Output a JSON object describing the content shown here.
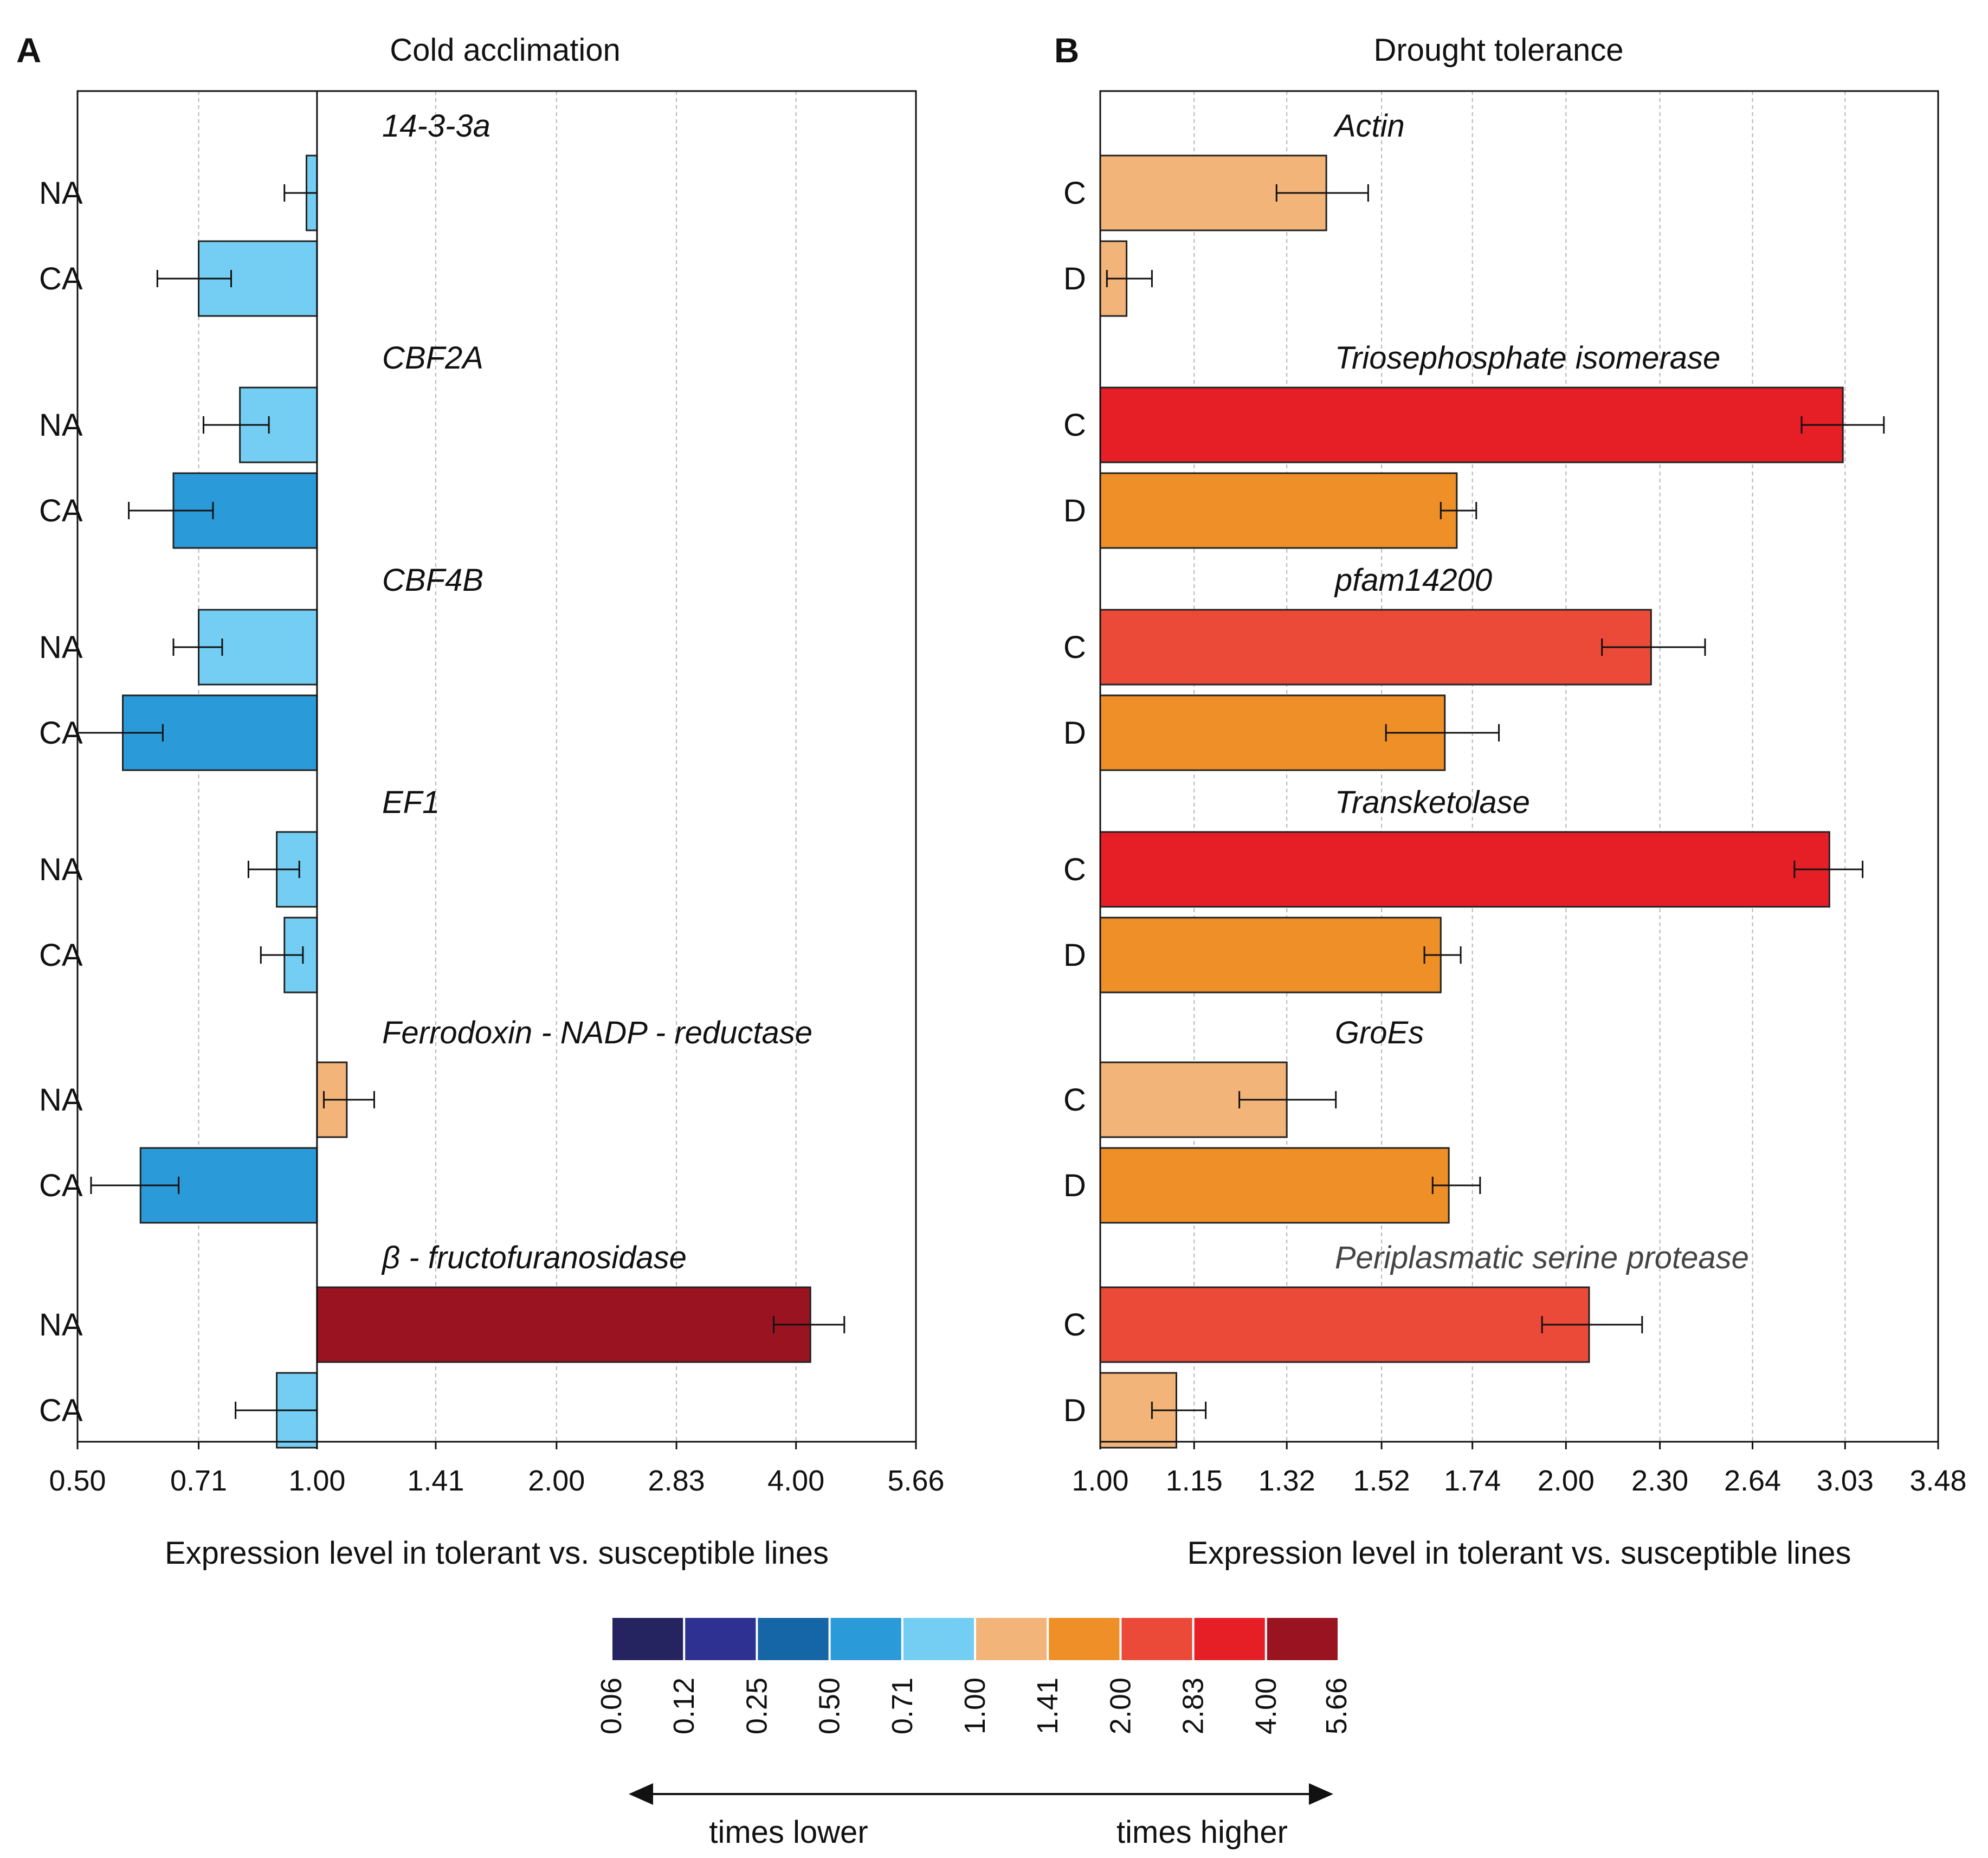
{
  "chart_data": [
    {
      "panel_label": "A",
      "type": "bar",
      "orientation": "horizontal",
      "title": "Cold acclimation",
      "xlabel": "Expression level in tolerant vs. susceptible lines",
      "xscale": "log2",
      "baseline": 1.0,
      "xlim": [
        0.5,
        5.66
      ],
      "xticks": [
        "0.50",
        "0.71",
        "1.00",
        "1.41",
        "2.00",
        "2.83",
        "4.00",
        "5.66"
      ],
      "xtick_values": [
        0.5,
        0.71,
        1.0,
        1.41,
        2.0,
        2.83,
        4.0,
        5.66
      ],
      "groups": [
        {
          "gene": "14-3-3a",
          "bars": [
            {
              "category": "NA",
              "value": 0.97,
              "err_low": 0.91,
              "err_high": 1.0
            },
            {
              "category": "CA",
              "value": 0.71,
              "err_low": 0.63,
              "err_high": 0.78
            }
          ]
        },
        {
          "gene": "CBF2A",
          "bars": [
            {
              "category": "NA",
              "value": 0.8,
              "err_low": 0.72,
              "err_high": 0.87
            },
            {
              "category": "CA",
              "value": 0.66,
              "err_low": 0.58,
              "err_high": 0.74
            }
          ]
        },
        {
          "gene": "CBF4B",
          "bars": [
            {
              "category": "NA",
              "value": 0.71,
              "err_low": 0.66,
              "err_high": 0.76
            },
            {
              "category": "CA",
              "value": 0.57,
              "err_low": 0.5,
              "err_high": 0.64
            }
          ]
        },
        {
          "gene": "EF1",
          "bars": [
            {
              "category": "NA",
              "value": 0.89,
              "err_low": 0.82,
              "err_high": 0.95
            },
            {
              "category": "CA",
              "value": 0.91,
              "err_low": 0.85,
              "err_high": 0.96
            }
          ]
        },
        {
          "gene": "Ferrodoxin - NADP - reductase",
          "bars": [
            {
              "category": "NA",
              "value": 1.09,
              "err_low": 1.02,
              "err_high": 1.18
            },
            {
              "category": "CA",
              "value": 0.6,
              "err_low": 0.52,
              "err_high": 0.67
            }
          ]
        },
        {
          "gene": "β - fructofuranosidase",
          "bars": [
            {
              "category": "NA",
              "value": 4.17,
              "err_low": 3.75,
              "err_high": 4.6
            },
            {
              "category": "CA",
              "value": 0.89,
              "err_low": 0.79,
              "err_high": 1.0
            }
          ]
        }
      ]
    },
    {
      "panel_label": "B",
      "type": "bar",
      "orientation": "horizontal",
      "title": "Drought tolerance",
      "xlabel": "Expression level in tolerant vs. susceptible lines",
      "xscale": "log2",
      "baseline": 1.0,
      "xlim": [
        1.0,
        3.48
      ],
      "xticks": [
        "1.00",
        "1.15",
        "1.32",
        "1.52",
        "1.74",
        "2.00",
        "2.30",
        "2.64",
        "3.03",
        "3.48"
      ],
      "xtick_values": [
        1.0,
        1.15,
        1.32,
        1.52,
        1.74,
        2.0,
        2.3,
        2.64,
        3.03,
        3.48
      ],
      "groups": [
        {
          "gene": "Actin",
          "bars": [
            {
              "category": "C",
              "value": 1.4,
              "err_low": 1.3,
              "err_high": 1.49
            },
            {
              "category": "D",
              "value": 1.04,
              "err_low": 1.01,
              "err_high": 1.08
            }
          ]
        },
        {
          "gene": "Triosephosphate isomerase",
          "bars": [
            {
              "category": "C",
              "value": 3.02,
              "err_low": 2.84,
              "err_high": 3.21
            },
            {
              "category": "D",
              "value": 1.7,
              "err_low": 1.66,
              "err_high": 1.75
            }
          ]
        },
        {
          "gene": "pfam14200",
          "bars": [
            {
              "category": "C",
              "value": 2.27,
              "err_low": 2.11,
              "err_high": 2.46
            },
            {
              "category": "D",
              "value": 1.67,
              "err_low": 1.53,
              "err_high": 1.81
            }
          ]
        },
        {
          "gene": "Transketolase",
          "bars": [
            {
              "category": "C",
              "value": 2.96,
              "err_low": 2.81,
              "err_high": 3.11
            },
            {
              "category": "D",
              "value": 1.66,
              "err_low": 1.62,
              "err_high": 1.71
            }
          ]
        },
        {
          "gene": "GroEs",
          "bars": [
            {
              "category": "C",
              "value": 1.32,
              "err_low": 1.23,
              "err_high": 1.42
            },
            {
              "category": "D",
              "value": 1.68,
              "err_low": 1.64,
              "err_high": 1.76
            }
          ]
        },
        {
          "gene": "Periplasmatic serine protease",
          "gene_style": "grey",
          "bars": [
            {
              "category": "C",
              "value": 2.07,
              "err_low": 1.93,
              "err_high": 2.24
            },
            {
              "category": "D",
              "value": 1.12,
              "err_low": 1.08,
              "err_high": 1.17
            }
          ]
        }
      ]
    }
  ],
  "legend": {
    "type": "colorscale",
    "boundaries": [
      "0.06",
      "0.12",
      "0.25",
      "0.50",
      "0.71",
      "1.00",
      "1.41",
      "2.00",
      "2.83",
      "4.00",
      "5.66"
    ],
    "colors": [
      "#262460",
      "#2e3191",
      "#1566a6",
      "#2b9ad8",
      "#74cef3",
      "#f2b478",
      "#ee8f27",
      "#ec4a39",
      "#e61e26",
      "#9a1321"
    ],
    "left_note": "times lower",
    "right_note": "times higher"
  }
}
